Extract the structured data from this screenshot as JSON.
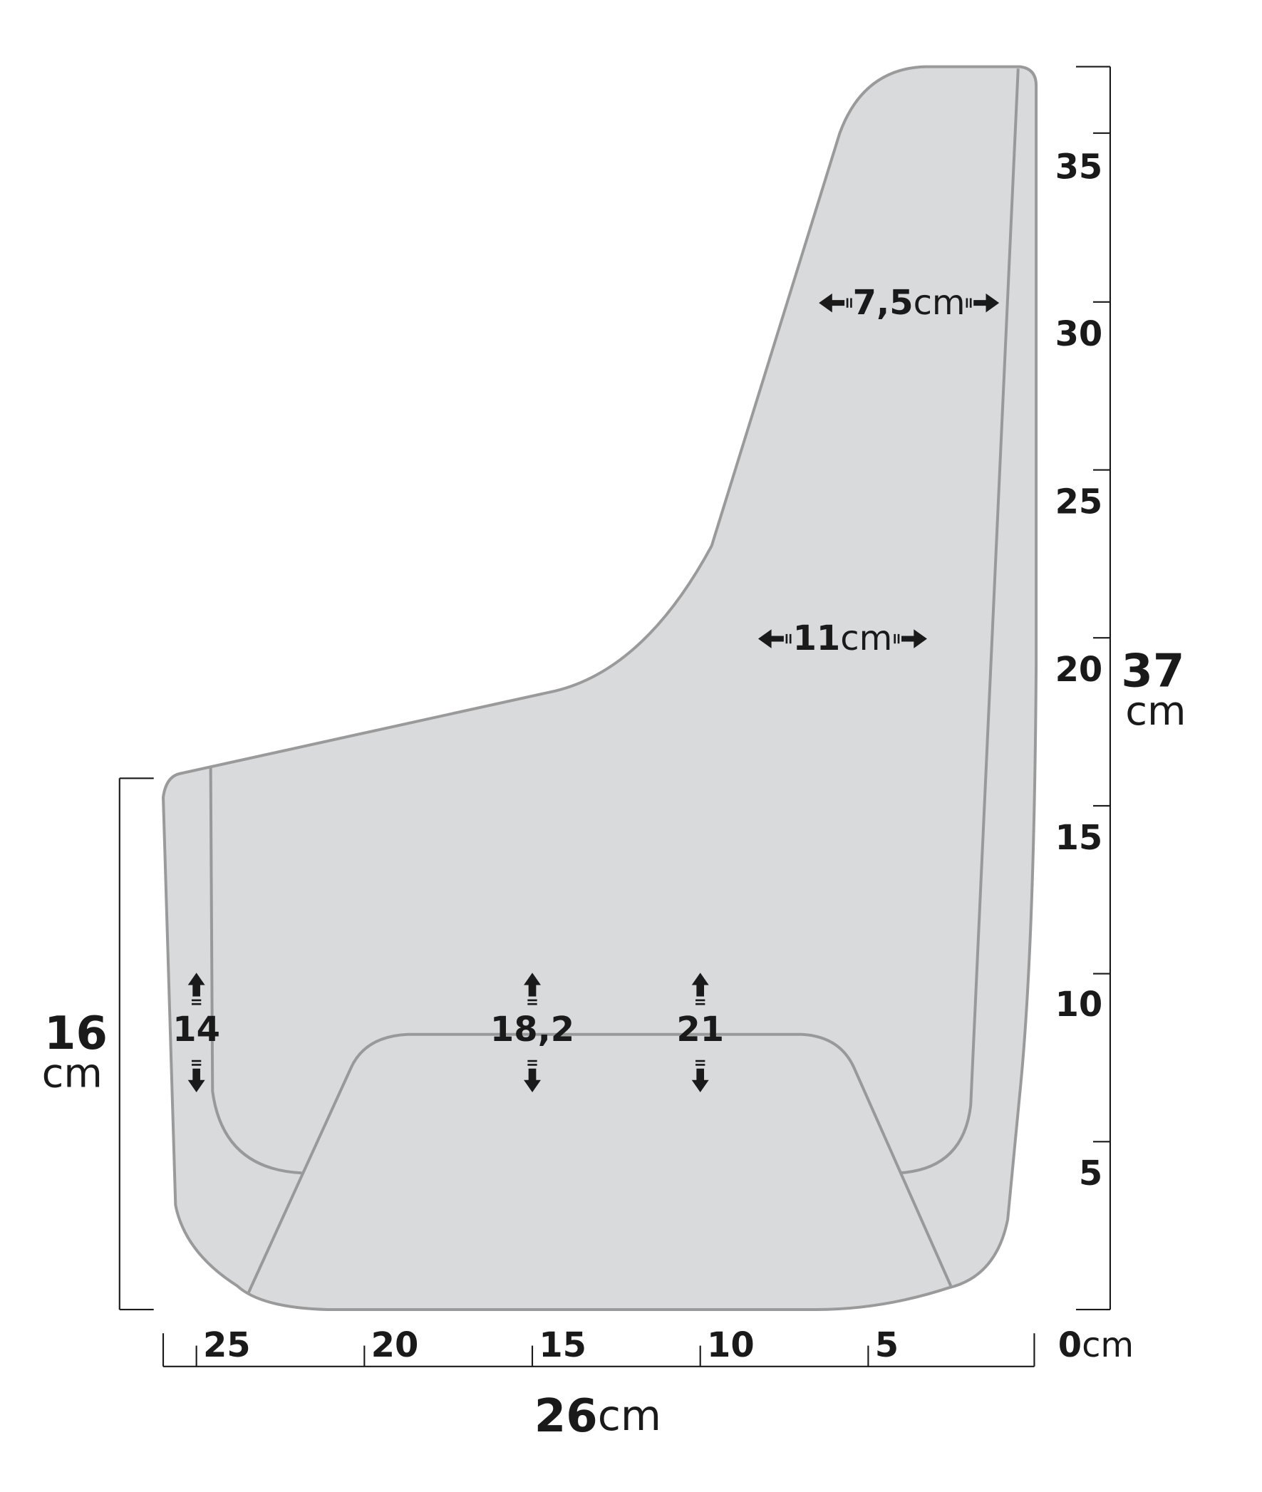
{
  "right_ruler": {
    "labels": [
      "35",
      "30",
      "25",
      "20",
      "15",
      "10",
      "5"
    ],
    "zero": "0",
    "zero_unit": "cm"
  },
  "bottom_ruler": {
    "labels": [
      "25",
      "20",
      "15",
      "10",
      "5"
    ]
  },
  "total_height": {
    "value": "37",
    "unit": "cm"
  },
  "total_width": {
    "value": "26",
    "unit": "cm"
  },
  "left_height": {
    "value": "16",
    "unit": "cm"
  },
  "widths": [
    {
      "value": "7,5",
      "unit": "cm"
    },
    {
      "value": "11",
      "unit": "cm"
    }
  ],
  "heights": [
    "14",
    "18,2",
    "21"
  ]
}
